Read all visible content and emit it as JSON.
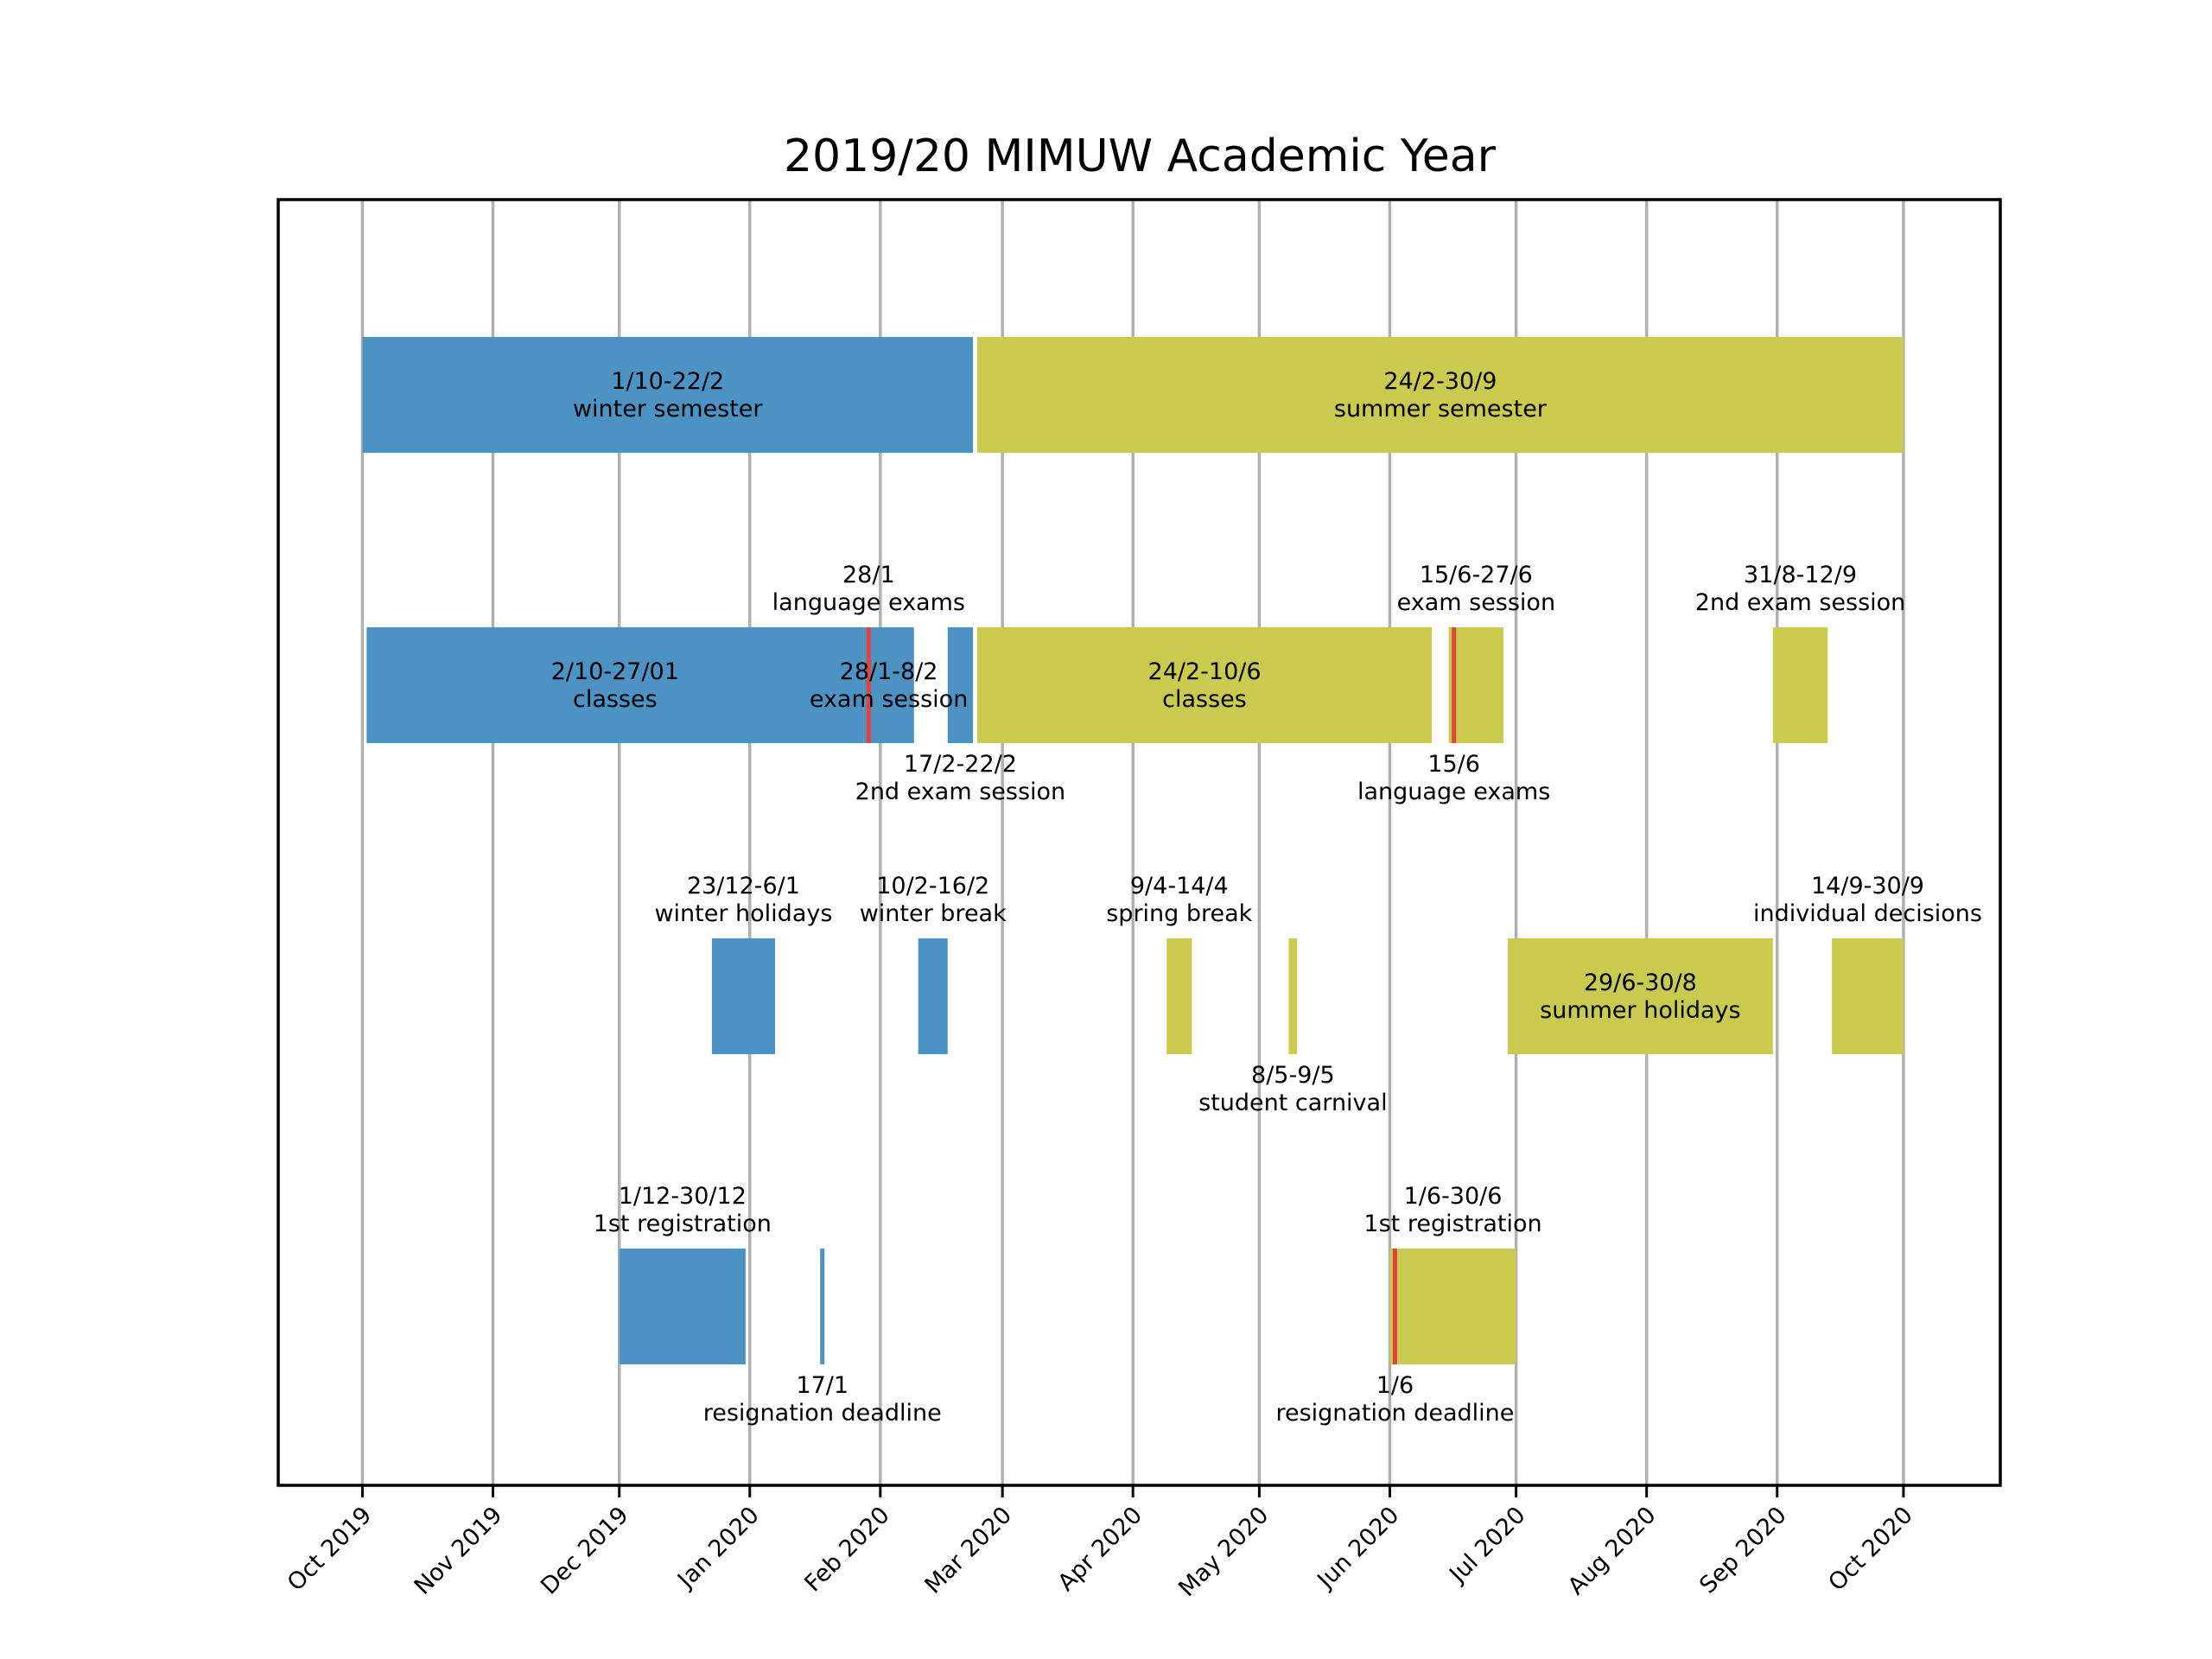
{
  "chart_data": {
    "type": "timeline",
    "title": "2019/20 MIMUW Academic Year",
    "xlabel": "",
    "ylabel": "",
    "grid": "vertical",
    "xlim": [
      "2019-09-11",
      "2020-10-24"
    ],
    "colors": {
      "winter": "#4c92c3",
      "summer": "#c9ca4e",
      "marker": "#e0443c"
    },
    "ticks": [
      {
        "date": "2019-10-01",
        "label": "Oct 2019"
      },
      {
        "date": "2019-11-01",
        "label": "Nov 2019"
      },
      {
        "date": "2019-12-01",
        "label": "Dec 2019"
      },
      {
        "date": "2020-01-01",
        "label": "Jan 2020"
      },
      {
        "date": "2020-02-01",
        "label": "Feb 2020"
      },
      {
        "date": "2020-03-01",
        "label": "Mar 2020"
      },
      {
        "date": "2020-04-01",
        "label": "Apr 2020"
      },
      {
        "date": "2020-05-01",
        "label": "May 2020"
      },
      {
        "date": "2020-06-01",
        "label": "Jun 2020"
      },
      {
        "date": "2020-07-01",
        "label": "Jul 2020"
      },
      {
        "date": "2020-08-01",
        "label": "Aug 2020"
      },
      {
        "date": "2020-09-01",
        "label": "Sep 2020"
      },
      {
        "date": "2020-10-01",
        "label": "Oct 2020"
      }
    ],
    "bars": [
      {
        "row": 0,
        "start": "2019-10-01",
        "end": "2020-02-22",
        "color": "winter",
        "range": "1/10-22/2",
        "name": "winter semester",
        "pos": "center"
      },
      {
        "row": 0,
        "start": "2020-02-24",
        "end": "2020-09-30",
        "color": "summer",
        "range": "24/2-30/9",
        "name": "summer semester",
        "pos": "center"
      },
      {
        "row": 1,
        "start": "2019-10-02",
        "end": "2020-01-27",
        "color": "winter",
        "range": "2/10-27/01",
        "name": "classes",
        "pos": "center"
      },
      {
        "row": 1,
        "start": "2020-01-28",
        "end": "2020-02-08",
        "color": "winter",
        "range": "28/1-8/2",
        "name": "exam session",
        "pos": "center"
      },
      {
        "row": 1,
        "start": "2020-02-17",
        "end": "2020-02-22",
        "color": "winter",
        "range": "17/2-22/2",
        "name": "2nd exam session",
        "pos": "below"
      },
      {
        "row": 1,
        "start": "2020-02-24",
        "end": "2020-06-10",
        "color": "summer",
        "range": "24/2-10/6",
        "name": "classes",
        "pos": "center"
      },
      {
        "row": 1,
        "start": "2020-06-15",
        "end": "2020-06-27",
        "color": "summer",
        "range": "15/6-27/6",
        "name": "exam session",
        "pos": "above"
      },
      {
        "row": 1,
        "start": "2020-08-31",
        "end": "2020-09-12",
        "color": "summer",
        "range": "31/8-12/9",
        "name": "2nd exam session",
        "pos": "above"
      },
      {
        "row": 2,
        "start": "2019-12-23",
        "end": "2020-01-06",
        "color": "winter",
        "range": "23/12-6/1",
        "name": "winter holidays",
        "pos": "above"
      },
      {
        "row": 2,
        "start": "2020-02-10",
        "end": "2020-02-16",
        "color": "winter",
        "range": "10/2-16/2",
        "name": "winter break",
        "pos": "above"
      },
      {
        "row": 2,
        "start": "2020-04-09",
        "end": "2020-04-14",
        "color": "summer",
        "range": "9/4-14/4",
        "name": "spring break",
        "pos": "above"
      },
      {
        "row": 2,
        "start": "2020-05-08",
        "end": "2020-05-09",
        "color": "summer",
        "range": "8/5-9/5",
        "name": "student carnival",
        "pos": "below"
      },
      {
        "row": 2,
        "start": "2020-06-29",
        "end": "2020-08-30",
        "color": "summer",
        "range": "29/6-30/8",
        "name": "summer holidays",
        "pos": "center"
      },
      {
        "row": 2,
        "start": "2020-09-14",
        "end": "2020-09-30",
        "color": "summer",
        "range": "14/9-30/9",
        "name": "individual decisions",
        "pos": "above"
      },
      {
        "row": 3,
        "start": "2019-12-01",
        "end": "2019-12-30",
        "color": "winter",
        "range": "1/12-30/12",
        "name": "1st registration",
        "pos": "above"
      },
      {
        "row": 3,
        "start": "2020-06-01",
        "end": "2020-06-30",
        "color": "summer",
        "range": "1/6-30/6",
        "name": "1st registration",
        "pos": "above"
      }
    ],
    "markers": [
      {
        "row": 1,
        "date": "2020-01-28",
        "color": "marker",
        "range": "28/1",
        "name": "language exams",
        "pos": "above"
      },
      {
        "row": 1,
        "date": "2020-06-15",
        "color": "marker",
        "range": "15/6",
        "name": "language exams",
        "pos": "below"
      },
      {
        "row": 3,
        "date": "2020-01-17",
        "color": "winter",
        "range": "17/1",
        "name": "resignation deadline",
        "pos": "below"
      },
      {
        "row": 3,
        "date": "2020-06-01",
        "color": "marker",
        "range": "1/6",
        "name": "resignation deadline",
        "pos": "below"
      }
    ]
  }
}
